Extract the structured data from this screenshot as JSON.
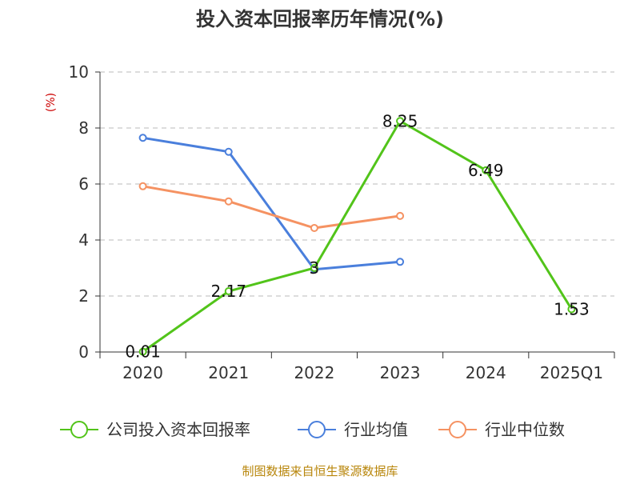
{
  "chart_data": {
    "type": "line",
    "title": "投入资本回报率历年情况(%)",
    "ylabel": "(%)",
    "xlabel": "",
    "categories": [
      "2020",
      "2021",
      "2022",
      "2023",
      "2024",
      "2025Q1"
    ],
    "ylim": [
      0,
      10
    ],
    "yticks": [
      0,
      2,
      4,
      6,
      8,
      10
    ],
    "grid": true,
    "legend_position": "bottom",
    "series": [
      {
        "name": "公司投入资本回报率",
        "color": "#52c41a",
        "values": [
          0.01,
          2.17,
          3,
          8.25,
          6.49,
          1.53
        ],
        "labels": [
          "0.01",
          "2.17",
          "3",
          "8.25",
          "6.49",
          "1.53"
        ]
      },
      {
        "name": "行业均值",
        "color": "#4a7fdc",
        "values": [
          7.65,
          7.15,
          2.95,
          3.22,
          null,
          null
        ]
      },
      {
        "name": "行业中位数",
        "color": "#f59262",
        "values": [
          5.92,
          5.38,
          4.43,
          4.86,
          null,
          null
        ]
      }
    ],
    "source": "制图数据来自恒生聚源数据库"
  }
}
